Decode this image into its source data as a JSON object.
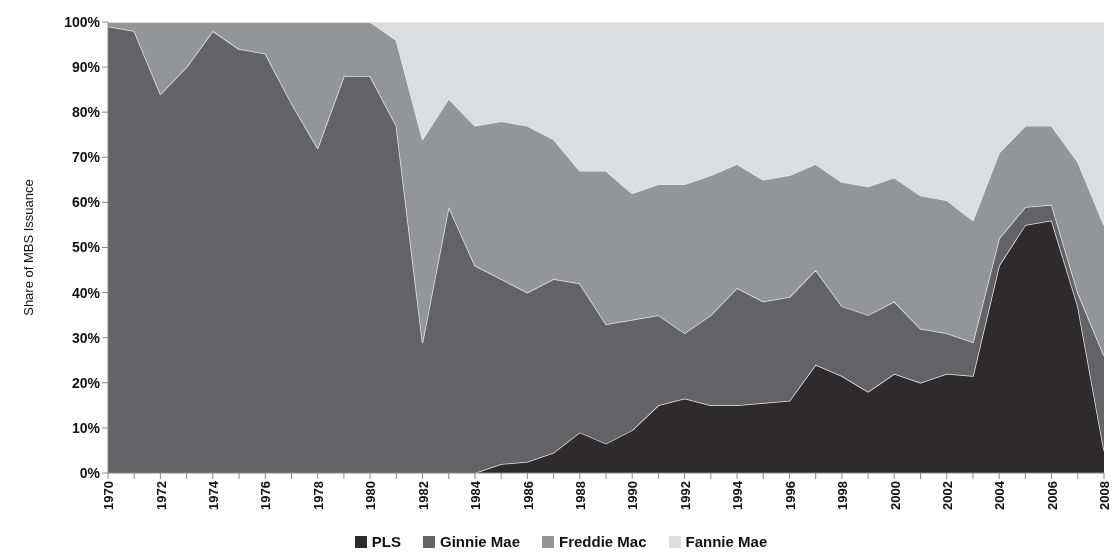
{
  "chart_data": {
    "type": "area",
    "stacked": true,
    "ylabel": "Share of MBS Issuance",
    "categories": [
      "1970",
      null,
      "1972",
      null,
      "1974",
      null,
      "1976",
      null,
      "1978",
      null,
      "1980",
      null,
      "1982",
      null,
      "1984",
      null,
      "1986",
      null,
      "1988",
      null,
      "1990",
      null,
      "1992",
      null,
      "1994",
      null,
      "1996",
      null,
      "1998",
      null,
      "2000",
      null,
      "2002",
      null,
      "2004",
      null,
      "2006",
      null,
      "2008"
    ],
    "series": [
      {
        "name": "PLS",
        "color": "#2e2b2d",
        "values": [
          0,
          0,
          0,
          0,
          0,
          0,
          0,
          0,
          0,
          0,
          0,
          0,
          0,
          0,
          0,
          2,
          2.5,
          4.5,
          9,
          6.5,
          9.5,
          15,
          16.5,
          15,
          15,
          15.5,
          16,
          24,
          21.5,
          18,
          22,
          20,
          22,
          21.5,
          46,
          55,
          56,
          37,
          5
        ]
      },
      {
        "name": "Ginnie Mae",
        "color": "#636266",
        "values": [
          99,
          98,
          84,
          90,
          98,
          94,
          93,
          82,
          72,
          88,
          88,
          77,
          29,
          59,
          46,
          41,
          37.5,
          38.5,
          33,
          26.5,
          24.5,
          20,
          14.5,
          20,
          26,
          22.5,
          23,
          21,
          15.5,
          17,
          16,
          12,
          9,
          7.5,
          6,
          4,
          3.5,
          3,
          21
        ]
      },
      {
        "name": "Freddie Mac",
        "color": "#939598",
        "values": [
          1,
          2,
          16,
          10,
          2,
          6,
          7,
          18,
          28,
          12,
          12,
          19,
          45,
          24,
          31,
          35,
          37,
          31,
          25,
          34,
          28,
          29,
          33,
          31,
          27.5,
          27,
          27,
          23.5,
          27.5,
          28.5,
          27.5,
          29.5,
          29.5,
          27,
          19,
          18,
          17.5,
          29,
          29
        ]
      },
      {
        "name": "Fannie Mae",
        "color": "#dcdde0",
        "values": [
          0,
          0,
          0,
          0,
          0,
          0,
          0,
          0,
          0,
          0,
          0,
          4,
          26,
          17,
          23,
          22,
          23,
          26,
          33,
          33,
          38,
          36,
          36,
          34,
          31.5,
          35,
          34,
          31.5,
          35.5,
          36.5,
          34.5,
          38.5,
          39.5,
          44,
          29,
          23,
          23,
          31,
          45
        ]
      }
    ],
    "ylim": [
      0,
      100
    ],
    "yticks": [
      {
        "value": 0,
        "label": "0%"
      },
      {
        "value": 10,
        "label": "10%"
      },
      {
        "value": 20,
        "label": "20%"
      },
      {
        "value": 30,
        "label": "30%"
      },
      {
        "value": 40,
        "label": "40%"
      },
      {
        "value": 50,
        "label": "50%"
      },
      {
        "value": 60,
        "label": "60%"
      },
      {
        "value": 70,
        "label": "70%"
      },
      {
        "value": 80,
        "label": "80%"
      },
      {
        "value": 90,
        "label": "90%"
      },
      {
        "value": 100,
        "label": "100%"
      }
    ],
    "legend": "bottom"
  }
}
